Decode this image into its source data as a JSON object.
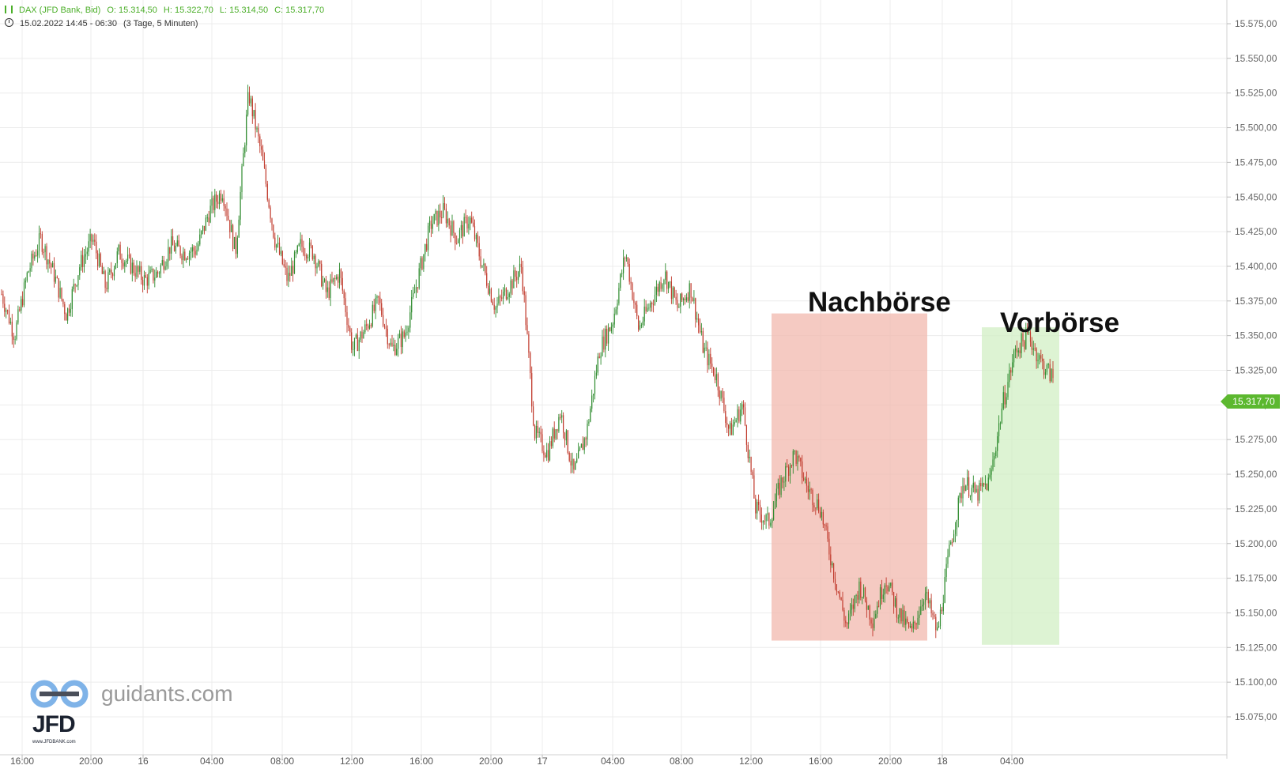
{
  "header": {
    "instrument": "DAX (JFD Bank, Bid)",
    "open": "O: 15.314,50",
    "high": "H: 15.322,70",
    "low": "L: 15.314,50",
    "close": "C: 15.317,70",
    "range": "15.02.2022 14:45 - 06:30",
    "interval": "(3 Tage, 5 Minuten)"
  },
  "annotations": {
    "after_hours": "Nachbörse",
    "pre_market": "Vorbörse"
  },
  "last_price": "15.317,70",
  "watermark": {
    "logo_text": "JFD",
    "logo_url": "www.JFDBANK.com",
    "site": "guidants.com"
  },
  "colors": {
    "up": "#2e8b2e",
    "down": "#c0392b",
    "grid": "#ececec",
    "after_hours_zone": "#f2b8ae",
    "pre_market_zone": "#d2efc4",
    "last_price_tag": "#5cb82f"
  },
  "chart_data": {
    "type": "candlestick",
    "title": "DAX (JFD Bank, Bid)",
    "interval": "5 Minuten",
    "y_axis": {
      "min": 15075,
      "max": 15575,
      "step": 25,
      "position": "right",
      "tick_labels": [
        "15.075,00",
        "15.100,00",
        "15.125,00",
        "15.150,00",
        "15.175,00",
        "15.200,00",
        "15.225,00",
        "15.250,00",
        "15.275,00",
        "15.300,00",
        "15.325,00",
        "15.350,00",
        "15.375,00",
        "15.400,00",
        "15.425,00",
        "15.450,00",
        "15.475,00",
        "15.500,00",
        "15.525,00",
        "15.550,00",
        "15.575,00"
      ]
    },
    "x_axis": {
      "tick_labels": [
        "16:00",
        "20:00",
        "16",
        "04:00",
        "08:00",
        "12:00",
        "16:00",
        "20:00",
        "17",
        "04:00",
        "08:00",
        "12:00",
        "16:00",
        "20:00",
        "18",
        "04:00"
      ]
    },
    "grid": true,
    "price_path": [
      {
        "time": "15.02. 14:45",
        "price": 15380
      },
      {
        "time": "15.02. 15:45",
        "price": 15350
      },
      {
        "time": "15.02. 16:45",
        "price": 15395
      },
      {
        "time": "15.02. 17:45",
        "price": 15420
      },
      {
        "time": "15.02. 18:45",
        "price": 15395
      },
      {
        "time": "15.02. 19:45",
        "price": 15365
      },
      {
        "time": "15.02. 20:45",
        "price": 15400
      },
      {
        "time": "15.02. 21:45",
        "price": 15420
      },
      {
        "time": "15.02. 22:45",
        "price": 15385
      },
      {
        "time": "16.02. 00:00",
        "price": 15410
      },
      {
        "time": "16.02. 01:00",
        "price": 15400
      },
      {
        "time": "16.02. 02:00",
        "price": 15390
      },
      {
        "time": "16.02. 03:00",
        "price": 15395
      },
      {
        "time": "16.02. 04:00",
        "price": 15415
      },
      {
        "time": "16.02. 05:00",
        "price": 15410
      },
      {
        "time": "16.02. 06:00",
        "price": 15412
      },
      {
        "time": "16.02. 07:00",
        "price": 15440
      },
      {
        "time": "16.02. 07:45",
        "price": 15455
      },
      {
        "time": "16.02. 08:30",
        "price": 15410
      },
      {
        "time": "16.02. 09:15",
        "price": 15525
      },
      {
        "time": "16.02. 09:45",
        "price": 15480
      },
      {
        "time": "16.02. 10:30",
        "price": 15420
      },
      {
        "time": "16.02. 11:30",
        "price": 15390
      },
      {
        "time": "16.02. 12:30",
        "price": 15415
      },
      {
        "time": "16.02. 13:30",
        "price": 15410
      },
      {
        "time": "16.02. 14:30",
        "price": 15380
      },
      {
        "time": "16.02. 15:30",
        "price": 15395
      },
      {
        "time": "16.02. 16:15",
        "price": 15340
      },
      {
        "time": "16.02. 17:00",
        "price": 15355
      },
      {
        "time": "16.02. 18:00",
        "price": 15375
      },
      {
        "time": "16.02. 19:00",
        "price": 15340
      },
      {
        "time": "16.02. 20:00",
        "price": 15350
      },
      {
        "time": "16.02. 21:00",
        "price": 15390
      },
      {
        "time": "16.02. 22:00",
        "price": 15430
      },
      {
        "time": "17.02. 00:00",
        "price": 15440
      },
      {
        "time": "17.02. 01:00",
        "price": 15420
      },
      {
        "time": "17.02. 02:00",
        "price": 15435
      },
      {
        "time": "17.02. 03:00",
        "price": 15400
      },
      {
        "time": "17.02. 04:00",
        "price": 15370
      },
      {
        "time": "17.02. 05:00",
        "price": 15385
      },
      {
        "time": "17.02. 06:00",
        "price": 15400
      },
      {
        "time": "17.02. 06:45",
        "price": 15280
      },
      {
        "time": "17.02. 07:30",
        "price": 15265
      },
      {
        "time": "17.02. 08:00",
        "price": 15295
      },
      {
        "time": "17.02. 08:45",
        "price": 15250
      },
      {
        "time": "17.02. 09:15",
        "price": 15280
      },
      {
        "time": "17.02. 09:45",
        "price": 15340
      },
      {
        "time": "17.02. 10:45",
        "price": 15360
      },
      {
        "time": "17.02. 11:15",
        "price": 15410
      },
      {
        "time": "17.02. 12:00",
        "price": 15355
      },
      {
        "time": "17.02. 13:00",
        "price": 15375
      },
      {
        "time": "17.02. 14:00",
        "price": 15395
      },
      {
        "time": "17.02. 15:00",
        "price": 15370
      },
      {
        "time": "17.02. 16:00",
        "price": 15385
      },
      {
        "time": "17.02. 16:45",
        "price": 15340
      },
      {
        "time": "17.02. 17:30",
        "price": 15320
      },
      {
        "time": "17.02. 18:15",
        "price": 15280
      },
      {
        "time": "17.02. 18:45",
        "price": 15300
      },
      {
        "time": "17.02. 19:30",
        "price": 15225
      },
      {
        "time": "17.02. 20:00",
        "price": 15215
      },
      {
        "time": "17.02. 21:00",
        "price": 15245
      },
      {
        "time": "17.02. 21:45",
        "price": 15265
      },
      {
        "time": "17.02. 22:30",
        "price": 15240
      },
      {
        "time": "18.02. 00:00",
        "price": 15225
      },
      {
        "time": "18.02. 01:00",
        "price": 15180
      },
      {
        "time": "18.02. 01:30",
        "price": 15140
      },
      {
        "time": "18.02. 02:00",
        "price": 15170
      },
      {
        "time": "18.02. 02:45",
        "price": 15145
      },
      {
        "time": "18.02. 03:30",
        "price": 15175
      },
      {
        "time": "18.02. 04:15",
        "price": 15150
      },
      {
        "time": "18.02. 05:00",
        "price": 15135
      },
      {
        "time": "18.02. 05:45",
        "price": 15165
      },
      {
        "time": "18.02. 06:15",
        "price": 15135
      },
      {
        "time": "18.02. 06:30",
        "price": 15200
      },
      {
        "time": "18.02. 07:30",
        "price": 15245
      },
      {
        "time": "18.02. 08:15",
        "price": 15235
      },
      {
        "time": "18.02. 08:45",
        "price": 15245
      },
      {
        "time": "18.02. 09:15",
        "price": 15300
      },
      {
        "time": "18.02. 09:45",
        "price": 15340
      },
      {
        "time": "18.02. 10:15",
        "price": 15350
      },
      {
        "time": "18.02. 10:45",
        "price": 15330
      },
      {
        "time": "18.02. 11:15",
        "price": 15318
      }
    ],
    "zones": [
      {
        "label": "Nachbörse",
        "price_top": 15366,
        "price_bottom": 15130
      },
      {
        "label": "Vorbörse",
        "price_top": 15356,
        "price_bottom": 15127
      }
    ]
  }
}
